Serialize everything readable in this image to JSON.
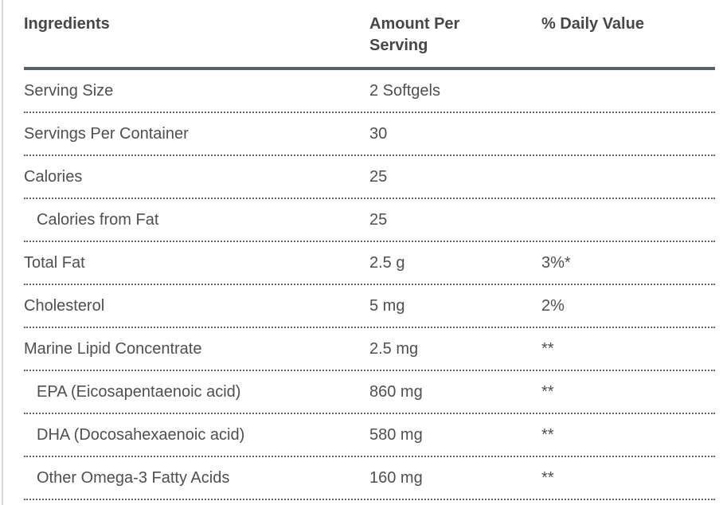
{
  "page": {
    "background": "#ffffff",
    "left_edge_color": "#d9d9d9"
  },
  "colors": {
    "body_text": "#4f4f4f",
    "header_text": "#474747",
    "rule": "#54626c"
  },
  "table": {
    "columns": [
      "Ingredients",
      "Amount Per Serving",
      "% Daily Value"
    ],
    "rows": [
      {
        "ingredient": "Serving Size",
        "amount": "2 Softgels",
        "daily_value": "",
        "indent": false
      },
      {
        "ingredient": "Servings Per Container",
        "amount": "30",
        "daily_value": "",
        "indent": false
      },
      {
        "ingredient": "Calories",
        "amount": "25",
        "daily_value": "",
        "indent": false
      },
      {
        "ingredient": "Calories from Fat",
        "amount": "25",
        "daily_value": "",
        "indent": true
      },
      {
        "ingredient": "Total Fat",
        "amount": "2.5 g",
        "daily_value": "3%*",
        "indent": false
      },
      {
        "ingredient": "Cholesterol",
        "amount": "5 mg",
        "daily_value": "2%",
        "indent": false
      },
      {
        "ingredient": "Marine Lipid Concentrate",
        "amount": "2.5 mg",
        "daily_value": "**",
        "indent": false
      },
      {
        "ingredient": "EPA (Eicosapentaenoic acid)",
        "amount": "860 mg",
        "daily_value": "**",
        "indent": true
      },
      {
        "ingredient": "DHA (Docosahexaenoic acid)",
        "amount": "580 mg",
        "daily_value": "**",
        "indent": true
      },
      {
        "ingredient": "Other Omega-3 Fatty Acids",
        "amount": "160 mg",
        "daily_value": "**",
        "indent": true
      }
    ]
  }
}
